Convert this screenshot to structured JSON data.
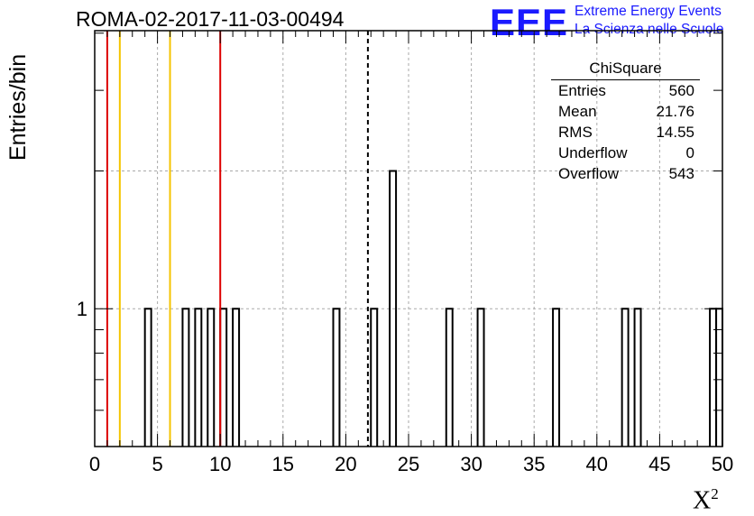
{
  "header": {
    "title": "ROMA-02-2017-11-03-00494",
    "logo_text": "EEE",
    "logo_line1": "Extreme Energy Events",
    "logo_line2": "La Scienza nelle Scuole"
  },
  "stats": {
    "title": "ChiSquare",
    "rows": [
      {
        "label": "Entries",
        "value": "560"
      },
      {
        "label": "Mean",
        "value": "21.76"
      },
      {
        "label": "RMS",
        "value": "14.55"
      },
      {
        "label": "Underflow",
        "value": "0"
      },
      {
        "label": "Overflow",
        "value": "543"
      }
    ]
  },
  "colors": {
    "red": "#dd0000",
    "yellow": "#f5c400",
    "grid": "#aaaaaa",
    "logo": "#1a1aff"
  },
  "chart_data": {
    "type": "bar",
    "title": "ROMA-02-2017-11-03-00494",
    "xlabel": "X²",
    "ylabel": "Entries/bin",
    "xlim": [
      0,
      50
    ],
    "ylog": true,
    "bin_width": 0.5,
    "x_ticks": [
      "0",
      "5",
      "10",
      "15",
      "20",
      "25",
      "30",
      "35",
      "40",
      "45",
      "50"
    ],
    "y_ticks": [
      "1"
    ],
    "bins": [
      {
        "x": 4.0,
        "value": 1
      },
      {
        "x": 7.0,
        "value": 1
      },
      {
        "x": 8.0,
        "value": 1
      },
      {
        "x": 9.0,
        "value": 1
      },
      {
        "x": 10.0,
        "value": 1
      },
      {
        "x": 11.0,
        "value": 1
      },
      {
        "x": 19.0,
        "value": 1
      },
      {
        "x": 22.0,
        "value": 1
      },
      {
        "x": 23.5,
        "value": 2
      },
      {
        "x": 28.0,
        "value": 1
      },
      {
        "x": 30.5,
        "value": 1
      },
      {
        "x": 36.5,
        "value": 1
      },
      {
        "x": 42.0,
        "value": 1
      },
      {
        "x": 43.0,
        "value": 1
      },
      {
        "x": 49.0,
        "value": 1
      },
      {
        "x": 49.5,
        "value": 1
      }
    ],
    "vlines": [
      {
        "x": 1.0,
        "color": "red"
      },
      {
        "x": 2.0,
        "color": "yellow"
      },
      {
        "x": 6.0,
        "color": "yellow"
      },
      {
        "x": 10.0,
        "color": "red"
      },
      {
        "x": 21.76,
        "color": "black",
        "style": "dashed"
      }
    ],
    "grid": true
  }
}
